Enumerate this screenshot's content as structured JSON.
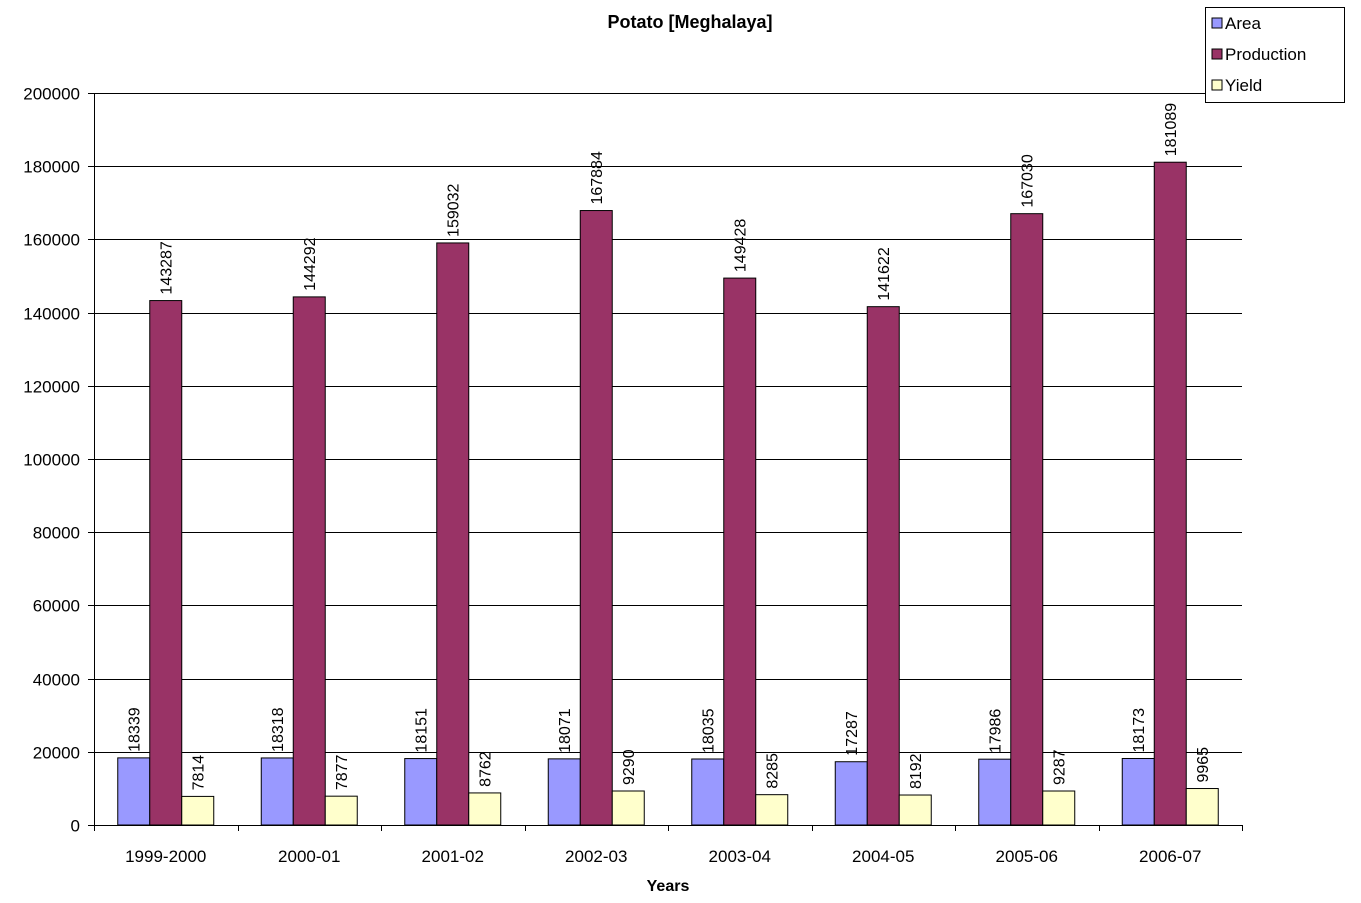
{
  "chart_data": {
    "type": "bar",
    "title": "Potato [Meghalaya]",
    "xlabel": "Years",
    "ylabel": "",
    "ylim": [
      0,
      200000
    ],
    "yticks": [
      0,
      20000,
      40000,
      60000,
      80000,
      100000,
      120000,
      140000,
      160000,
      180000,
      200000
    ],
    "grid": true,
    "legend_position": "top-right",
    "categories": [
      "1999-2000",
      "2000-01",
      "2001-02",
      "2002-03",
      "2003-04",
      "2004-05",
      "2005-06",
      "2006-07"
    ],
    "series": [
      {
        "name": "Area",
        "color": "#9999ff",
        "values": [
          18339,
          18318,
          18151,
          18071,
          18035,
          17287,
          17986,
          18173
        ]
      },
      {
        "name": "Production",
        "color": "#993366",
        "values": [
          143287,
          144292,
          159032,
          167884,
          149428,
          141622,
          167030,
          181089
        ]
      },
      {
        "name": "Yield",
        "color": "#ffffcc",
        "values": [
          7814,
          7877,
          8762,
          9290,
          8285,
          8192,
          9287,
          9965
        ]
      }
    ]
  }
}
